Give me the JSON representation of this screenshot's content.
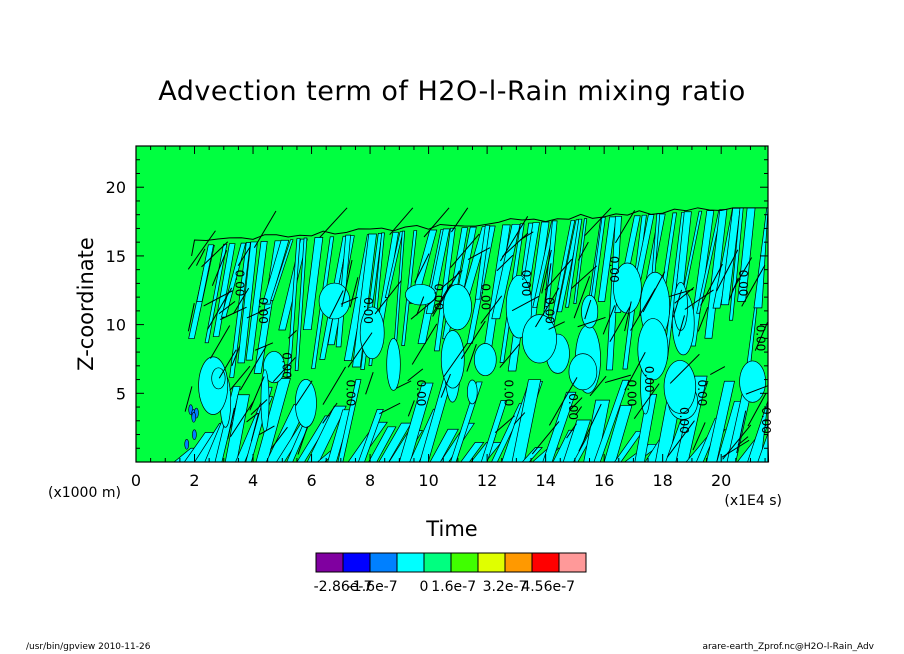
{
  "title": "Advection term of H2O-l-Rain mixing ratio",
  "footer": {
    "left": "/usr/bin/gpview  2010-11-26",
    "right": "arare-earth_Zprof.nc@H2O-l-Rain_Adv"
  },
  "chart_data": {
    "type": "heatmap",
    "title": "Advection term of H2O-l-Rain mixing ratio",
    "xlabel": "Time",
    "ylabel": "Z-coordinate",
    "x_unit_label": "(x1E4 s)",
    "y_unit_label": "(x1000 m)",
    "xlim": [
      0,
      21.6
    ],
    "ylim": [
      0,
      23
    ],
    "x_ticks": [
      0,
      2,
      4,
      6,
      8,
      10,
      12,
      14,
      16,
      18,
      20
    ],
    "y_ticks": [
      5,
      10,
      15,
      20
    ],
    "contour_label": "0.00",
    "colorbar": {
      "colors": [
        "#8000a0",
        "#0000ff",
        "#0080ff",
        "#00ffff",
        "#00ff80",
        "#40ff00",
        "#e0ff00",
        "#ff9900",
        "#ff0000",
        "#ff9999"
      ],
      "labels": [
        "-2.86e-7",
        "-1.6e-7",
        "0",
        "1.6e-7",
        "3.2e-7",
        "4.56e-7"
      ]
    },
    "background_color": "#00ff40",
    "field_extent_top": 18.5
  }
}
